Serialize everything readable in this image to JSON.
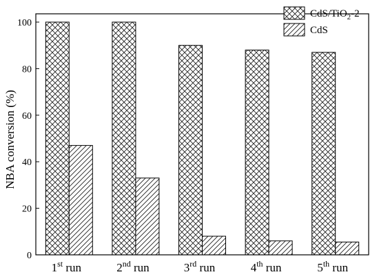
{
  "chart_data": {
    "type": "bar",
    "ylabel": "NBA conversion (%)",
    "ylim": [
      0,
      100
    ],
    "yticks": [
      0,
      20,
      40,
      60,
      80,
      100
    ],
    "grid": false,
    "legend_position": "top-right",
    "categories": [
      {
        "number": "1",
        "sup": "st",
        "suffix": " run"
      },
      {
        "number": "2",
        "sup": "nd",
        "suffix": " run"
      },
      {
        "number": "3",
        "sup": "rd",
        "suffix": " run"
      },
      {
        "number": "4",
        "sup": "th",
        "suffix": " run"
      },
      {
        "number": "5",
        "sup": "th",
        "suffix": " run"
      }
    ],
    "series": [
      {
        "name": "CdS/TiO2-2",
        "pattern": "crosshatch",
        "values": [
          100,
          100,
          90,
          88,
          87
        ]
      },
      {
        "name": "CdS",
        "pattern": "diagonal",
        "values": [
          47,
          33,
          8,
          6,
          5.5
        ]
      }
    ],
    "legend": [
      {
        "base": "CdS/TiO",
        "sub": "2",
        "tail": "-2"
      },
      {
        "base": "CdS",
        "sub": "",
        "tail": ""
      }
    ]
  }
}
